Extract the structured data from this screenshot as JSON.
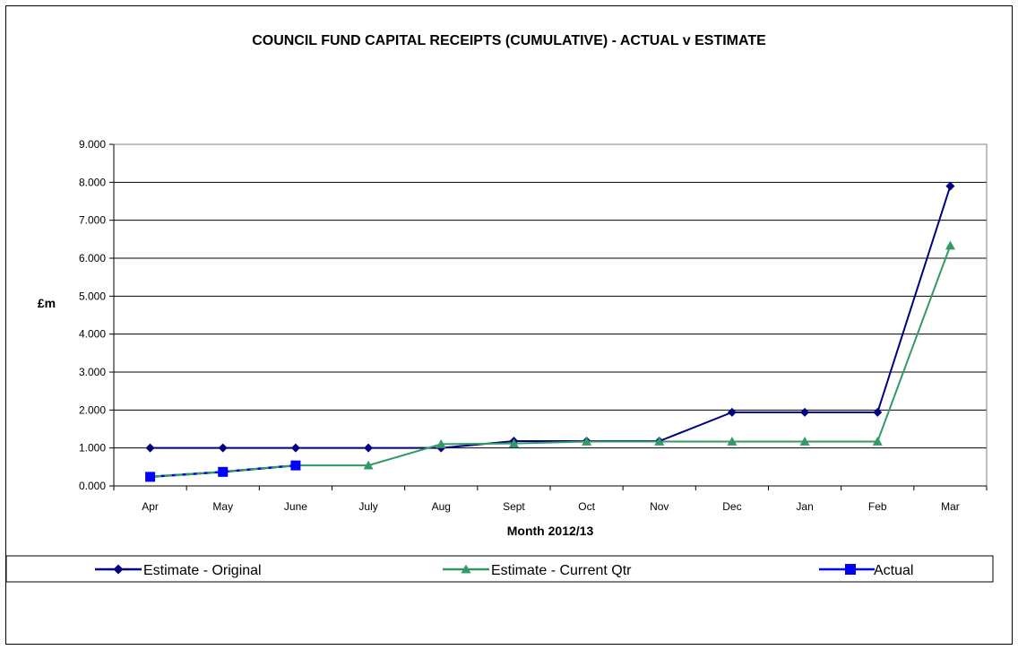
{
  "chart_data": {
    "type": "line",
    "title": "COUNCIL FUND CAPITAL RECEIPTS (CUMULATIVE) - ACTUAL v ESTIMATE",
    "xlabel": "Month 2012/13",
    "ylabel": "£m",
    "categories": [
      "Apr",
      "May",
      "June",
      "July",
      "Aug",
      "Sept",
      "Oct",
      "Nov",
      "Dec",
      "Jan",
      "Feb",
      "Mar"
    ],
    "ylim": [
      0,
      9
    ],
    "yticks": [
      "0.000",
      "1.000",
      "2.000",
      "3.000",
      "4.000",
      "5.000",
      "6.000",
      "7.000",
      "8.000",
      "9.000"
    ],
    "grid": true,
    "legend_position": "bottom",
    "series": [
      {
        "name": "Estimate - Original",
        "color": "#000080",
        "marker": "diamond",
        "values": [
          1.0,
          1.0,
          1.0,
          1.0,
          1.0,
          1.18,
          1.18,
          1.18,
          1.94,
          1.94,
          1.94,
          7.9
        ]
      },
      {
        "name": "Estimate - Current Qtr",
        "color": "#339966",
        "marker": "triangle",
        "values": [
          null,
          null,
          0.54,
          0.54,
          1.1,
          1.12,
          1.17,
          1.17,
          1.17,
          1.17,
          1.17,
          6.33
        ]
      },
      {
        "name": "Actual",
        "color": "#0000FF",
        "marker": "square",
        "dashed": true,
        "values": [
          0.24,
          0.37,
          0.54,
          null,
          null,
          null,
          null,
          null,
          null,
          null,
          null,
          null
        ]
      }
    ]
  }
}
